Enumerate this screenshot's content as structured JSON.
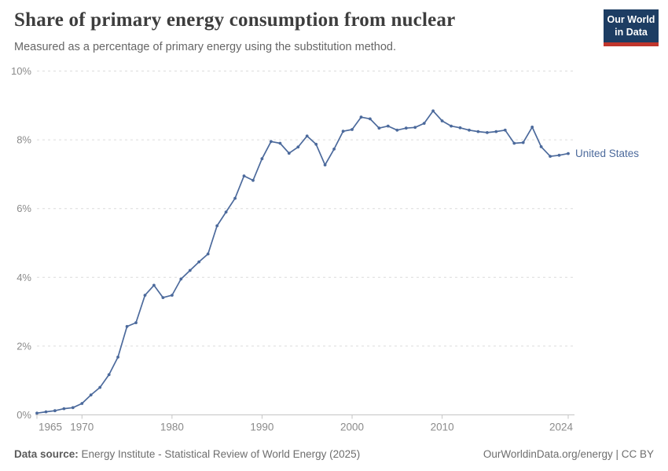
{
  "header": {
    "title": "Share of primary energy consumption from nuclear",
    "subtitle": "Measured as a percentage of primary energy using the substitution method.",
    "logo_line1": "Our World",
    "logo_line2": "in Data"
  },
  "footer": {
    "source_label": "Data source:",
    "source_text": " Energy Institute - Statistical Review of World Energy (2025)",
    "right_text": "OurWorldinData.org/energy | CC BY"
  },
  "colors": {
    "line": "#4C6A9C",
    "grid": "#dcdcdc",
    "axis": "#c4c4c4",
    "tick_label": "#8b8b8b",
    "logo_navy": "#1d3d63",
    "logo_red": "#c0362d"
  },
  "chart_data": {
    "type": "line",
    "title": "Share of primary energy consumption from nuclear",
    "subtitle": "Measured as a percentage of primary energy using the substitution method.",
    "xlabel": "",
    "ylabel": "",
    "xlim": [
      1965,
      2024
    ],
    "ylim": [
      0,
      10
    ],
    "grid": "horizontal-dashed",
    "legend_position": "end-of-line-label",
    "x_ticks": [
      1965,
      1970,
      1980,
      1990,
      2000,
      2010,
      2024
    ],
    "x_tick_labels": [
      "1965",
      "1970",
      "1980",
      "1990",
      "2000",
      "2010",
      "2024"
    ],
    "y_ticks": [
      0,
      2,
      4,
      6,
      8,
      10
    ],
    "y_tick_labels": [
      "0%",
      "2%",
      "4%",
      "6%",
      "8%",
      "10%"
    ],
    "series": [
      {
        "name": "United States",
        "color": "#4C6A9C",
        "x": [
          1965,
          1966,
          1967,
          1968,
          1969,
          1970,
          1971,
          1972,
          1973,
          1974,
          1975,
          1976,
          1977,
          1978,
          1979,
          1980,
          1981,
          1982,
          1983,
          1984,
          1985,
          1986,
          1987,
          1988,
          1989,
          1990,
          1991,
          1992,
          1993,
          1994,
          1995,
          1996,
          1997,
          1998,
          1999,
          2000,
          2001,
          2002,
          2003,
          2004,
          2005,
          2006,
          2007,
          2008,
          2009,
          2010,
          2011,
          2012,
          2013,
          2014,
          2015,
          2016,
          2017,
          2018,
          2019,
          2020,
          2021,
          2022,
          2023,
          2024
        ],
        "values": [
          0.05,
          0.09,
          0.12,
          0.18,
          0.21,
          0.33,
          0.58,
          0.8,
          1.17,
          1.68,
          2.57,
          2.68,
          3.48,
          3.77,
          3.41,
          3.48,
          3.95,
          4.2,
          4.45,
          4.68,
          5.5,
          5.9,
          6.3,
          6.95,
          6.82,
          7.45,
          7.95,
          7.9,
          7.61,
          7.79,
          8.11,
          7.87,
          7.27,
          7.73,
          8.25,
          8.3,
          8.66,
          8.61,
          8.34,
          8.4,
          8.28,
          8.34,
          8.36,
          8.48,
          8.84,
          8.55,
          8.4,
          8.35,
          8.28,
          8.24,
          8.21,
          8.24,
          8.28,
          7.9,
          7.92,
          8.37,
          7.8,
          7.52,
          7.55,
          7.6
        ]
      }
    ]
  }
}
